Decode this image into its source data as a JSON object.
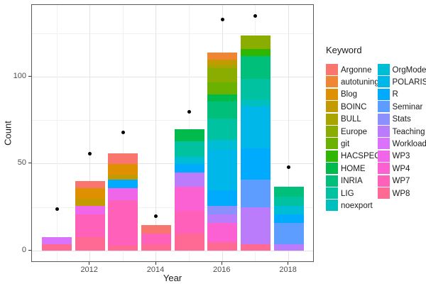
{
  "figure": {
    "xlabel": "Year",
    "ylabel": "Count"
  },
  "legend": {
    "title": "Keyword",
    "columns": [
      [
        "Argonne",
        "autotuning",
        "Blog",
        "BOINC",
        "BULL",
        "Europe",
        "git",
        "HACSPECIS",
        "HOME",
        "INRIA",
        "LIG",
        "noexport"
      ],
      [
        "OrgMode",
        "POLARIS",
        "R",
        "Seminar",
        "Stats",
        "Teaching",
        "Workload",
        "WP3",
        "WP4",
        "WP7",
        "WP8"
      ]
    ]
  },
  "chart_data": {
    "type": "bar",
    "stacked": true,
    "title": "",
    "xlabel": "Year",
    "ylabel": "Count",
    "legend_title": "Keyword",
    "legend_position": "right",
    "grid": true,
    "ylim": [
      -7,
      141
    ],
    "y_ticks": [
      0,
      50,
      100
    ],
    "y_minor": [
      25,
      75,
      125
    ],
    "x_ticks": [
      2012,
      2014,
      2016,
      2018
    ],
    "x_minor": [
      2011,
      2013,
      2015,
      2017
    ],
    "keywords": [
      {
        "name": "Argonne",
        "color": "#F8766D"
      },
      {
        "name": "autotuning",
        "color": "#EE8633"
      },
      {
        "name": "Blog",
        "color": "#DE9000"
      },
      {
        "name": "BOINC",
        "color": "#C39B00"
      },
      {
        "name": "BULL",
        "color": "#A8A400"
      },
      {
        "name": "Europe",
        "color": "#8BAD00"
      },
      {
        "name": "git",
        "color": "#6BB200"
      },
      {
        "name": "HACSPECIS",
        "color": "#2FB600"
      },
      {
        "name": "HOME",
        "color": "#00BB4B"
      },
      {
        "name": "INRIA",
        "color": "#00BF7A"
      },
      {
        "name": "LIG",
        "color": "#00C1A0"
      },
      {
        "name": "noexport",
        "color": "#00C0BF"
      },
      {
        "name": "OrgMode",
        "color": "#00BDD6"
      },
      {
        "name": "POLARIS",
        "color": "#00B7E9"
      },
      {
        "name": "R",
        "color": "#00ABFD"
      },
      {
        "name": "Seminar",
        "color": "#5C9DFF"
      },
      {
        "name": "Stats",
        "color": "#8B90FC"
      },
      {
        "name": "Teaching",
        "color": "#BB7CFC"
      },
      {
        "name": "Workload",
        "color": "#DA72FB"
      },
      {
        "name": "WP3",
        "color": "#EF66EB"
      },
      {
        "name": "WP4",
        "color": "#FB61D2"
      },
      {
        "name": "WP7",
        "color": "#FF60BA"
      },
      {
        "name": "WP8",
        "color": "#FF6A94"
      }
    ],
    "bars": [
      {
        "year": 2011,
        "total": 8,
        "segments": [
          {
            "keyword": "WP8",
            "value": 4
          },
          {
            "keyword": "Workload",
            "value": 4
          }
        ]
      },
      {
        "year": 2012,
        "total": 40,
        "segments": [
          {
            "keyword": "WP8",
            "value": 8
          },
          {
            "keyword": "WP7",
            "value": 13
          },
          {
            "keyword": "WP3",
            "value": 5
          },
          {
            "keyword": "BOINC",
            "value": 4
          },
          {
            "keyword": "Blog",
            "value": 6
          },
          {
            "keyword": "Argonne",
            "value": 4
          }
        ]
      },
      {
        "year": 2013,
        "total": 56,
        "segments": [
          {
            "keyword": "WP8",
            "value": 3
          },
          {
            "keyword": "WP7",
            "value": 26
          },
          {
            "keyword": "WP3",
            "value": 7
          },
          {
            "keyword": "R",
            "value": 5
          },
          {
            "keyword": "BOINC",
            "value": 3
          },
          {
            "keyword": "Blog",
            "value": 6
          },
          {
            "keyword": "Argonne",
            "value": 6
          }
        ]
      },
      {
        "year": 2014,
        "total": 15,
        "segments": [
          {
            "keyword": "WP8",
            "value": 4
          },
          {
            "keyword": "WP7",
            "value": 6
          },
          {
            "keyword": "Argonne",
            "value": 5
          }
        ]
      },
      {
        "year": 2015,
        "total": 70,
        "segments": [
          {
            "keyword": "WP8",
            "value": 10
          },
          {
            "keyword": "WP7",
            "value": 13
          },
          {
            "keyword": "WP4",
            "value": 14
          },
          {
            "keyword": "Teaching",
            "value": 8
          },
          {
            "keyword": "R",
            "value": 5
          },
          {
            "keyword": "OrgMode",
            "value": 4
          },
          {
            "keyword": "LIG",
            "value": 9
          },
          {
            "keyword": "HOME",
            "value": 7
          }
        ]
      },
      {
        "year": 2016,
        "total": 114,
        "segments": [
          {
            "keyword": "WP8",
            "value": 5
          },
          {
            "keyword": "WP4",
            "value": 11
          },
          {
            "keyword": "Teaching",
            "value": 5
          },
          {
            "keyword": "Stats",
            "value": 5
          },
          {
            "keyword": "R",
            "value": 9
          },
          {
            "keyword": "POLARIS",
            "value": 23
          },
          {
            "keyword": "OrgMode",
            "value": 6
          },
          {
            "keyword": "LIG",
            "value": 12
          },
          {
            "keyword": "INRIA",
            "value": 10
          },
          {
            "keyword": "HOME",
            "value": 4
          },
          {
            "keyword": "git",
            "value": 7
          },
          {
            "keyword": "Europe",
            "value": 8
          },
          {
            "keyword": "BULL",
            "value": 2
          },
          {
            "keyword": "BOINC",
            "value": 3
          },
          {
            "keyword": "autotuning",
            "value": 4
          }
        ]
      },
      {
        "year": 2017,
        "total": 124,
        "segments": [
          {
            "keyword": "WP8",
            "value": 4
          },
          {
            "keyword": "Teaching",
            "value": 21
          },
          {
            "keyword": "Seminar",
            "value": 16
          },
          {
            "keyword": "R",
            "value": 18
          },
          {
            "keyword": "POLARIS",
            "value": 24
          },
          {
            "keyword": "noexport",
            "value": 4
          },
          {
            "keyword": "LIG",
            "value": 12
          },
          {
            "keyword": "INRIA",
            "value": 13
          },
          {
            "keyword": "HACSPECIS",
            "value": 4
          },
          {
            "keyword": "Europe",
            "value": 8
          }
        ]
      },
      {
        "year": 2018,
        "total": 37,
        "segments": [
          {
            "keyword": "Teaching",
            "value": 4
          },
          {
            "keyword": "Seminar",
            "value": 12
          },
          {
            "keyword": "R",
            "value": 5
          },
          {
            "keyword": "OrgMode",
            "value": 5
          },
          {
            "keyword": "LIG",
            "value": 5
          },
          {
            "keyword": "INRIA",
            "value": 6
          }
        ]
      }
    ],
    "points": [
      {
        "year": 2011,
        "value": 24
      },
      {
        "year": 2012,
        "value": 56
      },
      {
        "year": 2013,
        "value": 68
      },
      {
        "year": 2014,
        "value": 20
      },
      {
        "year": 2015,
        "value": 80
      },
      {
        "year": 2016,
        "value": 133
      },
      {
        "year": 2017,
        "value": 135
      },
      {
        "year": 2018,
        "value": 48
      }
    ]
  }
}
